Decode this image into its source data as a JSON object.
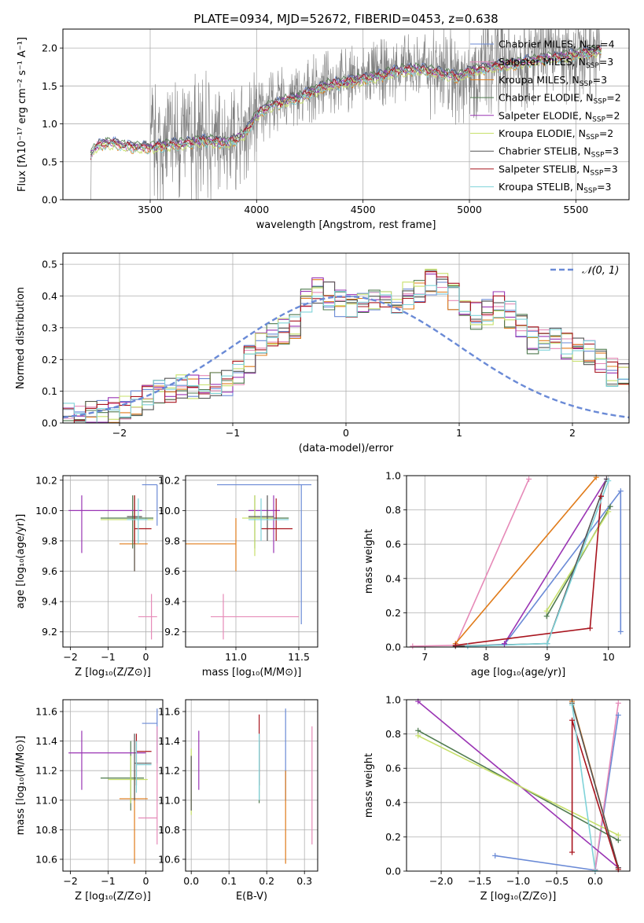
{
  "colors": {
    "Chabrier MILES": "#6a8ad6",
    "Salpeter MILES": "#e68ab8",
    "Kroupa MILES": "#e07b1a",
    "Chabrier ELODIE": "#4f7a4f",
    "Salpeter ELODIE": "#9a35b4",
    "Kroupa ELODIE": "#c7e06a",
    "Chabrier STELIB": "#555555",
    "Salpeter STELIB": "#a8141e",
    "Kroupa STELIB": "#7fd3d9",
    "data": "#808080",
    "normal": "#6a8ad6"
  },
  "chart_data": [
    {
      "id": "spectrum",
      "type": "line",
      "title": "PLATE=0934, MJD=52672, FIBERID=0453, z=0.638",
      "xlabel": "wavelength [Angstrom, rest frame]",
      "ylabel": "Flux [fλ10⁻¹⁷ erg cm⁻² s⁻¹ A⁻¹]",
      "xlim": [
        3090,
        5750
      ],
      "ylim": [
        0,
        2.25
      ],
      "xticks": [
        3500,
        4000,
        4500,
        5000,
        5500
      ],
      "yticks": [
        0.0,
        0.5,
        1.0,
        1.5,
        2.0
      ],
      "legend_position": "top-right",
      "legend": [
        {
          "label": "Chabrier MILES, N",
          "sub": "SSP",
          "suffix": "=4"
        },
        {
          "label": "Salpeter MILES, N",
          "sub": "SSP",
          "suffix": "=3"
        },
        {
          "label": "Kroupa MILES, N",
          "sub": "SSP",
          "suffix": "=3"
        },
        {
          "label": "Chabrier ELODIE, N",
          "sub": "SSP",
          "suffix": "=2"
        },
        {
          "label": "Salpeter ELODIE, N",
          "sub": "SSP",
          "suffix": "=2"
        },
        {
          "label": "Kroupa ELODIE, N",
          "sub": "SSP",
          "suffix": "=2"
        },
        {
          "label": "Chabrier STELIB, N",
          "sub": "SSP",
          "suffix": "=3"
        },
        {
          "label": "Salpeter STELIB, N",
          "sub": "SSP",
          "suffix": "=3"
        },
        {
          "label": "Kroupa STELIB, N",
          "sub": "SSP",
          "suffix": "=3"
        }
      ],
      "continuum": [
        [
          3220,
          0.62
        ],
        [
          3250,
          0.74
        ],
        [
          3300,
          0.78
        ],
        [
          3350,
          0.76
        ],
        [
          3400,
          0.73
        ],
        [
          3450,
          0.72
        ],
        [
          3500,
          0.72
        ],
        [
          3550,
          0.74
        ],
        [
          3600,
          0.76
        ],
        [
          3650,
          0.76
        ],
        [
          3700,
          0.79
        ],
        [
          3750,
          0.81
        ],
        [
          3800,
          0.8
        ],
        [
          3850,
          0.78
        ],
        [
          3900,
          0.82
        ],
        [
          3950,
          0.92
        ],
        [
          4000,
          1.15
        ],
        [
          4050,
          1.25
        ],
        [
          4100,
          1.3
        ],
        [
          4150,
          1.35
        ],
        [
          4200,
          1.37
        ],
        [
          4250,
          1.45
        ],
        [
          4300,
          1.5
        ],
        [
          4350,
          1.55
        ],
        [
          4400,
          1.57
        ],
        [
          4450,
          1.6
        ],
        [
          4500,
          1.62
        ],
        [
          4550,
          1.65
        ],
        [
          4600,
          1.68
        ],
        [
          4650,
          1.72
        ],
        [
          4700,
          1.74
        ],
        [
          4750,
          1.75
        ],
        [
          4800,
          1.74
        ],
        [
          4850,
          1.7
        ],
        [
          4900,
          1.68
        ],
        [
          4950,
          1.65
        ],
        [
          5000,
          1.72
        ],
        [
          5050,
          1.75
        ],
        [
          5100,
          1.78
        ],
        [
          5200,
          1.82
        ],
        [
          5300,
          1.87
        ],
        [
          5400,
          1.9
        ],
        [
          5500,
          1.95
        ],
        [
          5620,
          2.0
        ]
      ],
      "noise_start": 3500
    },
    {
      "id": "residuals",
      "type": "histogram",
      "xlabel": "(data-model)/error",
      "ylabel": "Normed distribution",
      "xlim": [
        -2.5,
        2.5
      ],
      "ylim": [
        0,
        0.535
      ],
      "xticks": [
        -2,
        -1,
        0,
        1,
        2
      ],
      "yticks": [
        0.0,
        0.1,
        0.2,
        0.3,
        0.4,
        0.5
      ],
      "legend_position": "top-right",
      "legend_label": "𝒩(0, 1)",
      "bin_width": 0.1,
      "bin_start": -2.5,
      "base_heights": [
        0.02,
        0.02,
        0.03,
        0.03,
        0.04,
        0.05,
        0.06,
        0.08,
        0.09,
        0.1,
        0.11,
        0.12,
        0.12,
        0.12,
        0.13,
        0.15,
        0.2,
        0.25,
        0.28,
        0.29,
        0.3,
        0.38,
        0.42,
        0.4,
        0.38,
        0.36,
        0.37,
        0.38,
        0.4,
        0.38,
        0.4,
        0.42,
        0.44,
        0.43,
        0.4,
        0.36,
        0.34,
        0.35,
        0.37,
        0.34,
        0.3,
        0.26,
        0.25,
        0.26,
        0.24,
        0.23,
        0.22,
        0.19,
        0.16,
        0.15,
        0.13,
        0.12,
        0.1,
        0.09,
        0.08,
        0.07,
        0.07,
        0.06,
        0.06,
        0.05
      ]
    },
    {
      "id": "age-vs-Z",
      "type": "errorbar",
      "xlabel": "Z [log₁₀(Z/Z⊙)]",
      "ylabel": "age  [log₁₀(age/yr)]",
      "xlim": [
        -2.2,
        0.45
      ],
      "ylim": [
        9.1,
        10.23
      ],
      "xticks": [
        -2,
        -1,
        0
      ],
      "yticks": [
        9.2,
        9.4,
        9.6,
        9.8,
        10.0,
        10.2
      ],
      "points": [
        {
          "s": "Chabrier MILES",
          "x": 0.3,
          "y": 10.17,
          "xl": -0.1,
          "xh": 0.3,
          "yl": 9.9,
          "yh": 10.17
        },
        {
          "s": "Salpeter MILES",
          "x": 0.15,
          "y": 9.3,
          "xl": -0.2,
          "xh": 0.3,
          "yl": 9.15,
          "yh": 9.45
        },
        {
          "s": "Kroupa MILES",
          "x": -0.3,
          "y": 9.78,
          "xl": -0.7,
          "xh": 0.05,
          "yl": 9.6,
          "yh": 9.95
        },
        {
          "s": "Chabrier ELODIE",
          "x": -0.35,
          "y": 9.95,
          "xl": -1.2,
          "xh": 0.2,
          "yl": 9.75,
          "yh": 10.1
        },
        {
          "s": "Salpeter ELODIE",
          "x": -1.7,
          "y": 10.0,
          "xl": -2.05,
          "xh": -0.1,
          "yl": 9.72,
          "yh": 10.1
        },
        {
          "s": "Kroupa ELODIE",
          "x": -0.3,
          "y": 9.94,
          "xl": -1.2,
          "xh": 0.2,
          "yl": 9.75,
          "yh": 10.1
        },
        {
          "s": "Chabrier STELIB",
          "x": -0.3,
          "y": 9.96,
          "xl": -0.5,
          "xh": -0.1,
          "yl": 9.6,
          "yh": 10.1
        },
        {
          "s": "Salpeter STELIB",
          "x": -0.3,
          "y": 9.88,
          "xl": -0.3,
          "xh": 0.15,
          "yl": 9.78,
          "yh": 10.1
        },
        {
          "s": "Kroupa STELIB",
          "x": -0.2,
          "y": 9.94,
          "xl": -0.5,
          "xh": 0.05,
          "yl": 9.78,
          "yh": 10.08
        }
      ]
    },
    {
      "id": "age-vs-mass",
      "type": "errorbar",
      "xlabel": "mass [log₁₀(M/M⊙)]",
      "ylabel": "",
      "xlim": [
        10.6,
        11.65
      ],
      "ylim": [
        9.1,
        10.23
      ],
      "xticks": [
        11.0,
        11.5
      ],
      "xticklabels": [
        "11.0",
        "11.5"
      ],
      "yticks": [
        9.2,
        9.4,
        9.6,
        9.8,
        10.0,
        10.2
      ],
      "points": [
        {
          "s": "Chabrier MILES",
          "x": 11.52,
          "y": 10.17,
          "xl": 10.85,
          "xh": 11.6,
          "yl": 9.25,
          "yh": 10.17
        },
        {
          "s": "Salpeter MILES",
          "x": 10.9,
          "y": 9.3,
          "xl": 10.8,
          "xh": 11.5,
          "yl": 9.15,
          "yh": 9.45
        },
        {
          "s": "Kroupa MILES",
          "x": 11.0,
          "y": 9.78,
          "xl": 10.6,
          "xh": 11.0,
          "yl": 9.6,
          "yh": 9.95
        },
        {
          "s": "Chabrier ELODIE",
          "x": 11.15,
          "y": 9.95,
          "xl": 11.1,
          "xh": 11.42,
          "yl": 9.75,
          "yh": 10.1
        },
        {
          "s": "Salpeter ELODIE",
          "x": 11.3,
          "y": 10.0,
          "xl": 11.1,
          "xh": 11.35,
          "yl": 9.72,
          "yh": 10.1
        },
        {
          "s": "Kroupa ELODIE",
          "x": 11.15,
          "y": 9.95,
          "xl": 11.05,
          "xh": 11.3,
          "yl": 9.7,
          "yh": 10.1
        },
        {
          "s": "Chabrier STELIB",
          "x": 11.25,
          "y": 9.96,
          "xl": 11.1,
          "xh": 11.3,
          "yl": 9.8,
          "yh": 10.1
        },
        {
          "s": "Salpeter STELIB",
          "x": 11.32,
          "y": 9.88,
          "xl": 11.2,
          "xh": 11.45,
          "yl": 9.8,
          "yh": 10.08
        },
        {
          "s": "Kroupa STELIB",
          "x": 11.2,
          "y": 9.94,
          "xl": 11.1,
          "xh": 11.42,
          "yl": 9.8,
          "yh": 10.08
        }
      ]
    },
    {
      "id": "massweight-vs-age",
      "type": "line",
      "xlabel": "age  [log₁₀(age/yr)]",
      "ylabel": "mass weight",
      "xlim": [
        6.7,
        10.35
      ],
      "ylim": [
        0,
        1.0
      ],
      "xticks": [
        7,
        8,
        9,
        10
      ],
      "yticks": [
        0.0,
        0.2,
        0.4,
        0.6,
        0.8,
        1.0
      ],
      "series": [
        {
          "s": "Chabrier MILES",
          "x": [
            7.7,
            8.3,
            10.2,
            10.2
          ],
          "y": [
            0.005,
            0.015,
            0.91,
            0.09
          ]
        },
        {
          "s": "Salpeter MILES",
          "x": [
            6.8,
            7.5,
            8.7
          ],
          "y": [
            0.005,
            0.01,
            0.98
          ]
        },
        {
          "s": "Kroupa MILES",
          "x": [
            7.5,
            9.8
          ],
          "y": [
            0.02,
            0.99
          ]
        },
        {
          "s": "Chabrier ELODIE",
          "x": [
            8.99,
            10.03
          ],
          "y": [
            0.18,
            0.82
          ]
        },
        {
          "s": "Salpeter ELODIE",
          "x": [
            8.3,
            9.97
          ],
          "y": [
            0.02,
            0.98
          ]
        },
        {
          "s": "Kroupa ELODIE",
          "x": [
            8.99,
            10.0
          ],
          "y": [
            0.21,
            0.79
          ]
        },
        {
          "s": "Chabrier STELIB",
          "x": [
            7.5,
            9.0,
            9.97
          ],
          "y": [
            0.005,
            0.02,
            0.98
          ]
        },
        {
          "s": "Salpeter STELIB",
          "x": [
            7.5,
            9.7,
            9.88,
            9.88
          ],
          "y": [
            0.01,
            0.11,
            0.88,
            0.88
          ]
        },
        {
          "s": "Kroupa STELIB",
          "x": [
            7.7,
            9.0,
            10.0
          ],
          "y": [
            0.005,
            0.02,
            0.97
          ]
        }
      ]
    },
    {
      "id": "mass-vs-Z",
      "type": "errorbar",
      "xlabel": "Z [log₁₀(Z/Z⊙)]",
      "ylabel": "mass [log₁₀(M/M⊙)]",
      "xlim": [
        -2.2,
        0.45
      ],
      "ylim": [
        10.52,
        11.68
      ],
      "xticks": [
        -2,
        -1,
        0
      ],
      "yticks": [
        10.6,
        10.8,
        11.0,
        11.2,
        11.4,
        11.6
      ],
      "points": [
        {
          "s": "Chabrier MILES",
          "x": 0.3,
          "y": 11.52,
          "xl": -0.1,
          "xh": 0.3,
          "yl": 11.25,
          "yh": 11.62
        },
        {
          "s": "Salpeter MILES",
          "x": 0.3,
          "y": 10.88,
          "xl": -0.2,
          "xh": 0.3,
          "yl": 10.7,
          "yh": 11.5
        },
        {
          "s": "Kroupa MILES",
          "x": -0.3,
          "y": 11.01,
          "xl": -0.7,
          "xh": 0.05,
          "yl": 10.57,
          "yh": 11.2
        },
        {
          "s": "Chabrier ELODIE",
          "x": -0.4,
          "y": 11.15,
          "xl": -1.2,
          "xh": -0.05,
          "yl": 10.93,
          "yh": 11.4
        },
        {
          "s": "Salpeter ELODIE",
          "x": -1.7,
          "y": 11.32,
          "xl": -2.05,
          "xh": 0.0,
          "yl": 11.07,
          "yh": 11.47
        },
        {
          "s": "Kroupa ELODIE",
          "x": -0.4,
          "y": 11.14,
          "xl": -1.0,
          "xh": 0.05,
          "yl": 10.98,
          "yh": 11.3
        },
        {
          "s": "Chabrier STELIB",
          "x": -0.3,
          "y": 11.25,
          "xl": -0.3,
          "xh": 0.15,
          "yl": 11.0,
          "yh": 11.45
        },
        {
          "s": "Salpeter STELIB",
          "x": -0.25,
          "y": 11.33,
          "xl": -0.25,
          "xh": 0.15,
          "yl": 11.1,
          "yh": 11.45
        },
        {
          "s": "Kroupa STELIB",
          "x": -0.25,
          "y": 11.24,
          "xl": -0.25,
          "xh": 0.15,
          "yl": 11.05,
          "yh": 11.4
        }
      ]
    },
    {
      "id": "mass-vs-EBV",
      "type": "errorbar",
      "xlabel": "E(B-V)",
      "ylabel": "",
      "xlim": [
        -0.015,
        0.335
      ],
      "ylim": [
        10.52,
        11.68
      ],
      "xticks": [
        0.0,
        0.1,
        0.2,
        0.3
      ],
      "xticklabels": [
        "0.0",
        "0.1",
        "0.2",
        "0.3"
      ],
      "yticks": [
        10.6,
        10.8,
        11.0,
        11.2,
        11.4,
        11.6
      ],
      "points": [
        {
          "s": "Chabrier MILES",
          "x": 0.25,
          "y": 11.52,
          "xl": 0.25,
          "xh": 0.25,
          "yl": 11.0,
          "yh": 11.62
        },
        {
          "s": "Salpeter MILES",
          "x": 0.32,
          "y": 10.88,
          "xl": 0.32,
          "xh": 0.32,
          "yl": 10.7,
          "yh": 11.5
        },
        {
          "s": "Kroupa MILES",
          "x": 0.25,
          "y": 11.01,
          "xl": 0.25,
          "xh": 0.25,
          "yl": 10.57,
          "yh": 11.2
        },
        {
          "s": "Chabrier ELODIE",
          "x": 0.18,
          "y": 11.15,
          "xl": 0.18,
          "xh": 0.18,
          "yl": 10.98,
          "yh": 11.4
        },
        {
          "s": "Salpeter ELODIE",
          "x": 0.02,
          "y": 11.32,
          "xl": 0.02,
          "xh": 0.02,
          "yl": 11.07,
          "yh": 11.47
        },
        {
          "s": "Kroupa ELODIE",
          "x": 0.0,
          "y": 11.14,
          "xl": 0.0,
          "xh": 0.0,
          "yl": 10.9,
          "yh": 11.35
        },
        {
          "s": "Chabrier STELIB",
          "x": 0.0,
          "y": 11.25,
          "xl": 0.0,
          "xh": 0.0,
          "yl": 10.93,
          "yh": 11.3
        },
        {
          "s": "Salpeter STELIB",
          "x": 0.18,
          "y": 11.33,
          "xl": 0.18,
          "xh": 0.18,
          "yl": 11.1,
          "yh": 11.58
        },
        {
          "s": "Kroupa STELIB",
          "x": 0.18,
          "y": 11.24,
          "xl": 0.18,
          "xh": 0.18,
          "yl": 11.0,
          "yh": 11.45
        }
      ]
    },
    {
      "id": "massweight-vs-Z",
      "type": "line",
      "xlabel": "Z [log₁₀(Z/Z⊙)]",
      "ylabel": "mass weight",
      "xlim": [
        -2.45,
        0.45
      ],
      "ylim": [
        0,
        1.0
      ],
      "xticks": [
        -2.0,
        -1.5,
        -1.0,
        -0.5,
        0.0
      ],
      "xticklabels": [
        "−2.0",
        "−1.5",
        "−1.0",
        "−0.5",
        "0.0"
      ],
      "yticks": [
        0.0,
        0.2,
        0.4,
        0.6,
        0.8,
        1.0
      ],
      "series": [
        {
          "s": "Chabrier MILES",
          "x": [
            -1.3,
            0.0,
            0.3
          ],
          "y": [
            0.09,
            0.005,
            0.91
          ]
        },
        {
          "s": "Salpeter MILES",
          "x": [
            0.0,
            0.3
          ],
          "y": [
            0.01,
            0.98
          ]
        },
        {
          "s": "Kroupa MILES",
          "x": [
            -0.3,
            0.3
          ],
          "y": [
            0.99,
            0.02
          ]
        },
        {
          "s": "Chabrier ELODIE",
          "x": [
            -2.3,
            0.3
          ],
          "y": [
            0.82,
            0.18
          ]
        },
        {
          "s": "Salpeter ELODIE",
          "x": [
            -2.3,
            0.3
          ],
          "y": [
            0.99,
            0.02
          ]
        },
        {
          "s": "Kroupa ELODIE",
          "x": [
            -2.3,
            0.3
          ],
          "y": [
            0.79,
            0.21
          ]
        },
        {
          "s": "Chabrier STELIB",
          "x": [
            -0.3,
            0.3
          ],
          "y": [
            0.98,
            0.02
          ]
        },
        {
          "s": "Salpeter STELIB",
          "x": [
            -0.3,
            -0.3,
            0.3
          ],
          "y": [
            0.11,
            0.88,
            0.01
          ]
        },
        {
          "s": "Kroupa STELIB",
          "x": [
            -0.3,
            0.0
          ],
          "y": [
            0.97,
            0.005
          ]
        }
      ]
    }
  ]
}
